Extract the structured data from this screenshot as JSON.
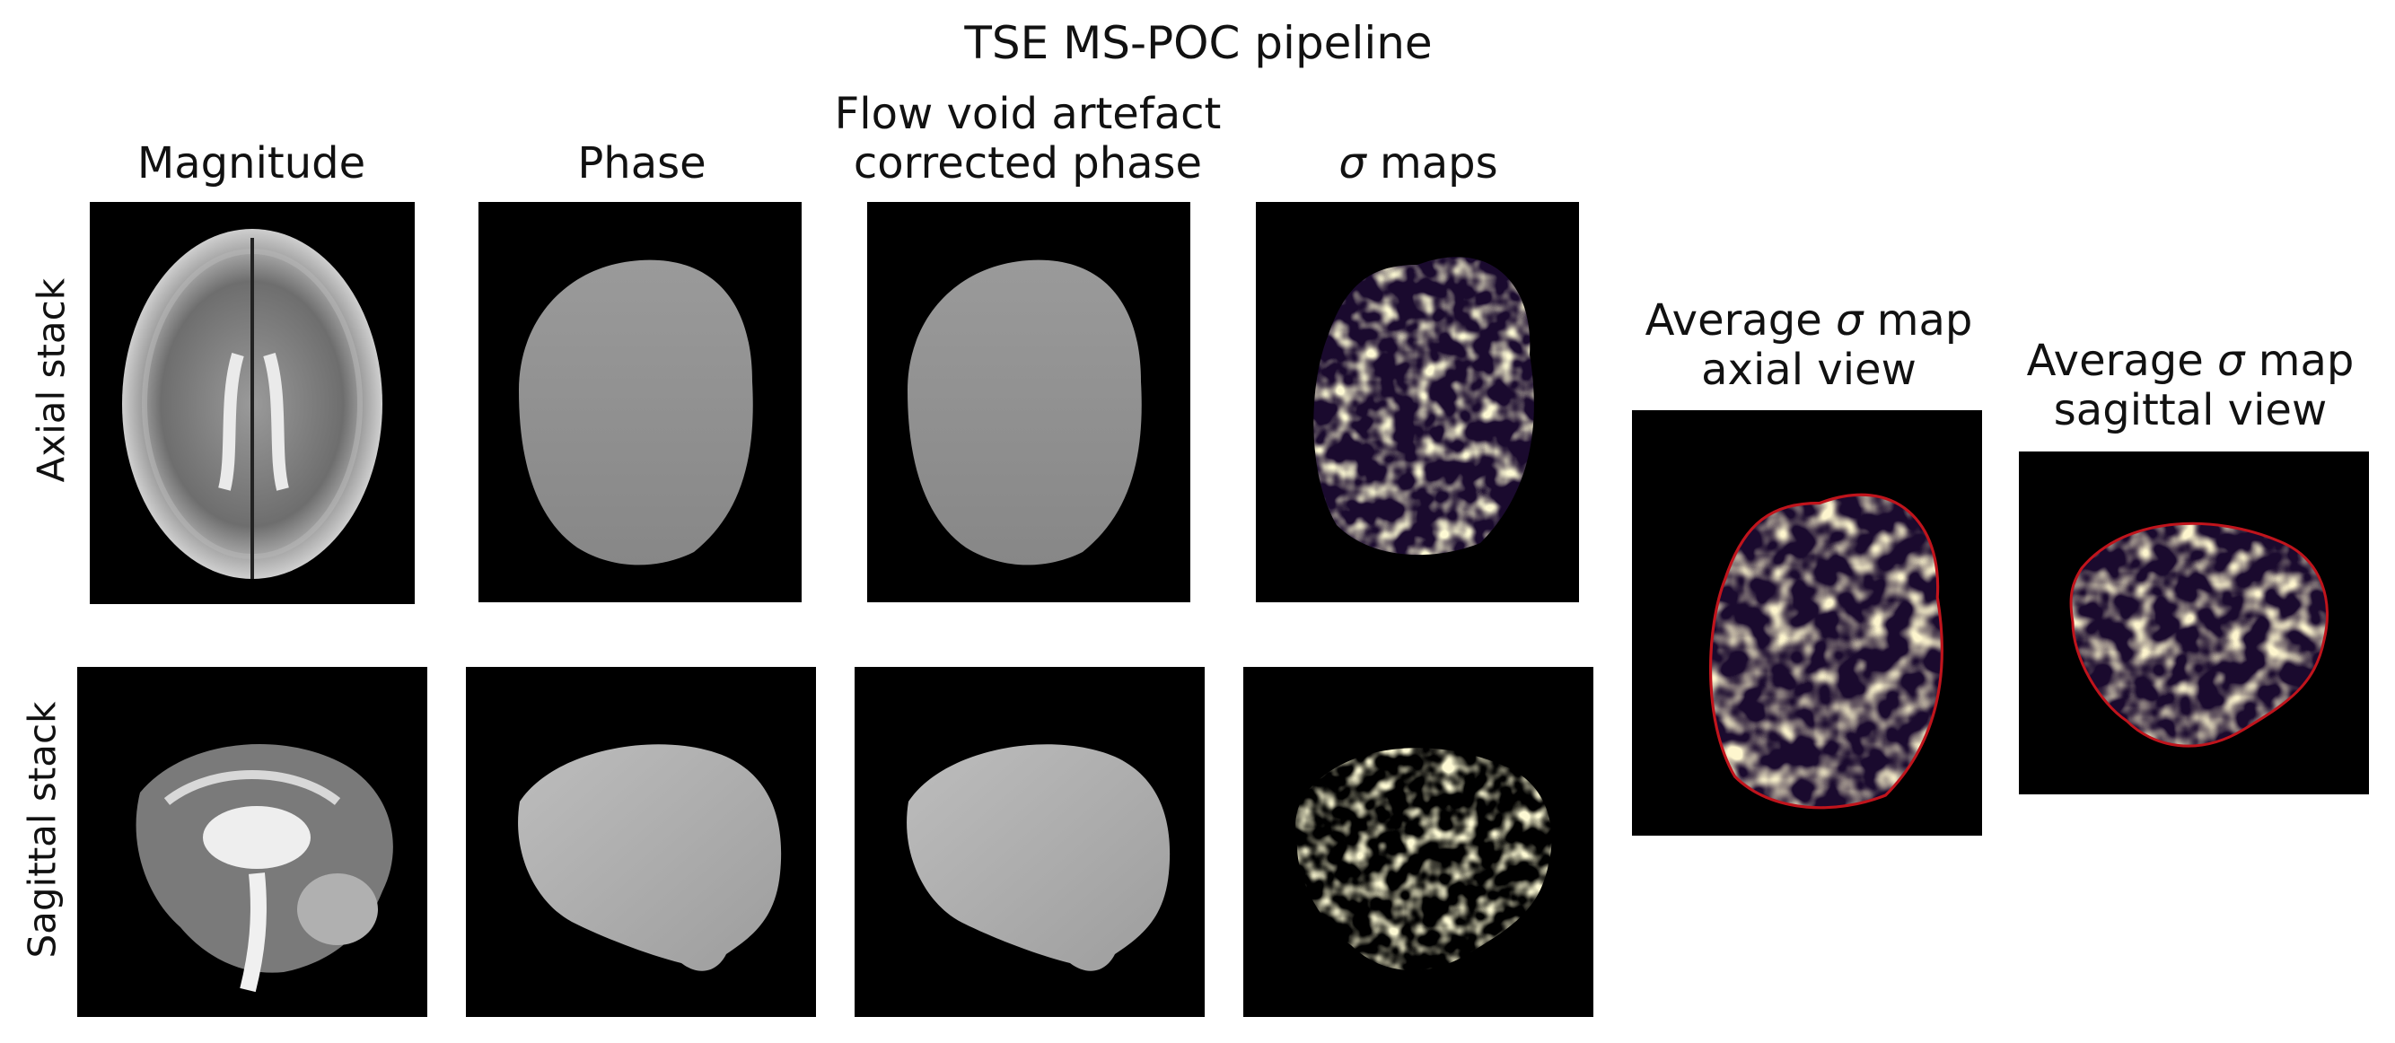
{
  "title": "TSE MS-POC pipeline",
  "columns": {
    "magnitude": "Magnitude",
    "phase": "Phase",
    "corrected_line1": "Flow void artefact",
    "corrected_line2": "corrected phase",
    "sigma_symbol": "σ",
    "sigma_maps": " maps"
  },
  "rows": {
    "axial": "Axial stack",
    "sagittal": "Sagittal stack"
  },
  "average_axial": {
    "line1_pre": "Average ",
    "line1_sym": "σ",
    "line1_post": " map",
    "line2": "axial view"
  },
  "average_sagittal": {
    "line1_pre": "Average ",
    "line1_sym": "σ",
    "line1_post": " map",
    "line2": "sagittal view"
  },
  "colors": {
    "background": "#000000",
    "phase_gray": "#8c8c8c",
    "sigma_yellow": "#fcf5a8",
    "sigma_dark": "#1a0a2e",
    "sigma_purple": "#5a2a6e",
    "contour_red": "#c0141c"
  }
}
